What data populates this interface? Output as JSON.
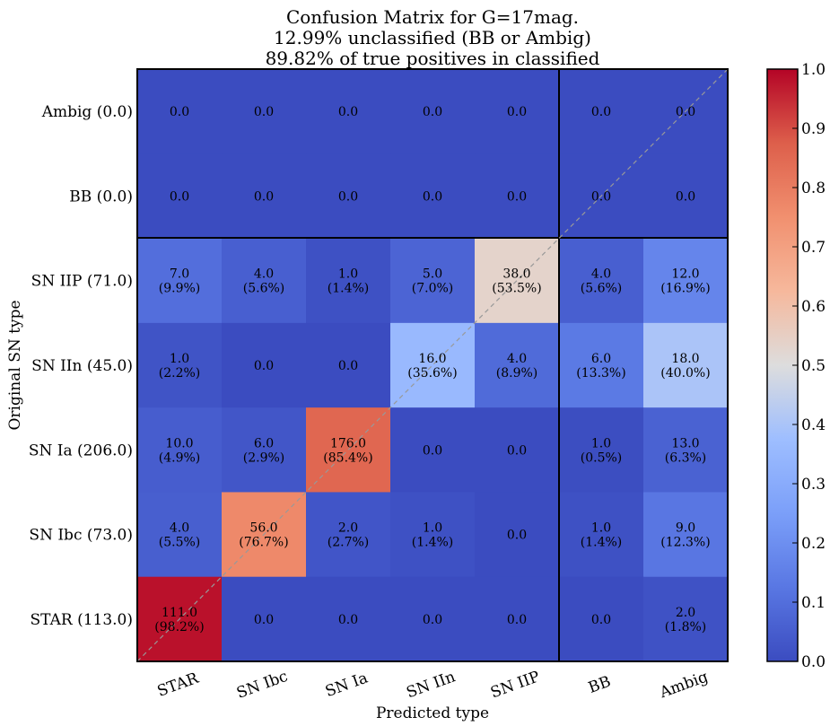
{
  "chart_data": {
    "type": "heatmap",
    "title": [
      "Confusion Matrix for G=17mag.",
      "12.99% unclassified (BB or Ambig)",
      "89.82% of true positives in classified"
    ],
    "x_label": "Predicted type",
    "y_label": "Original SN type",
    "columns": [
      "STAR",
      "SN Ibc",
      "SN Ia",
      "SN IIn",
      "SN IIP",
      "BB",
      "Ambig"
    ],
    "rows": [
      "Ambig (0.0)",
      "BB (0.0)",
      "SN IIP (71.0)",
      "SN IIn (45.0)",
      "SN Ia (206.0)",
      "SN Ibc (73.0)",
      "STAR (113.0)"
    ],
    "values": [
      [
        0,
        0,
        0,
        0,
        0,
        0,
        0
      ],
      [
        0,
        0,
        0,
        0,
        0,
        0,
        0
      ],
      [
        7,
        4,
        1,
        5,
        38,
        4,
        12
      ],
      [
        1,
        0,
        0,
        16,
        4,
        6,
        18
      ],
      [
        10,
        6,
        176,
        0,
        0,
        1,
        13
      ],
      [
        4,
        56,
        2,
        1,
        0,
        1,
        9
      ],
      [
        111,
        0,
        0,
        0,
        0,
        0,
        2
      ]
    ],
    "value_labels": [
      [
        "0.0",
        "0.0",
        "0.0",
        "0.0",
        "0.0",
        "0.0",
        "0.0"
      ],
      [
        "0.0",
        "0.0",
        "0.0",
        "0.0",
        "0.0",
        "0.0",
        "0.0"
      ],
      [
        "7.0",
        "4.0",
        "1.0",
        "5.0",
        "38.0",
        "4.0",
        "12.0"
      ],
      [
        "1.0",
        "0.0",
        "0.0",
        "16.0",
        "4.0",
        "6.0",
        "18.0"
      ],
      [
        "10.0",
        "6.0",
        "176.0",
        "0.0",
        "0.0",
        "1.0",
        "13.0"
      ],
      [
        "4.0",
        "56.0",
        "2.0",
        "1.0",
        "0.0",
        "1.0",
        "9.0"
      ],
      [
        "111.0",
        "0.0",
        "0.0",
        "0.0",
        "0.0",
        "0.0",
        "2.0"
      ]
    ],
    "percent": [
      [
        null,
        null,
        null,
        null,
        null,
        null,
        null
      ],
      [
        null,
        null,
        null,
        null,
        null,
        null,
        null
      ],
      [
        9.9,
        5.6,
        1.4,
        7.0,
        53.5,
        5.6,
        16.9
      ],
      [
        2.2,
        null,
        null,
        35.6,
        8.9,
        13.3,
        40.0
      ],
      [
        4.9,
        2.9,
        85.4,
        null,
        null,
        0.5,
        6.3
      ],
      [
        5.5,
        76.7,
        2.7,
        1.4,
        null,
        1.4,
        12.3
      ],
      [
        98.2,
        null,
        null,
        null,
        null,
        null,
        1.8
      ]
    ],
    "percent_labels": [
      [
        null,
        null,
        null,
        null,
        null,
        null,
        null
      ],
      [
        null,
        null,
        null,
        null,
        null,
        null,
        null
      ],
      [
        "(9.9%)",
        "(5.6%)",
        "(1.4%)",
        "(7.0%)",
        "(53.5%)",
        "(5.6%)",
        "(16.9%)"
      ],
      [
        "(2.2%)",
        null,
        null,
        "(35.6%)",
        "(8.9%)",
        "(13.3%)",
        "(40.0%)"
      ],
      [
        "(4.9%)",
        "(2.9%)",
        "(85.4%)",
        null,
        null,
        "(0.5%)",
        "(6.3%)"
      ],
      [
        "(5.5%)",
        "(76.7%)",
        "(2.7%)",
        "(1.4%)",
        null,
        "(1.4%)",
        "(12.3%)"
      ],
      [
        "(98.2%)",
        null,
        null,
        null,
        null,
        null,
        "(1.8%)"
      ]
    ],
    "clim": [
      0,
      1
    ],
    "cticks": [
      {
        "value": 0,
        "label": "0.0"
      },
      {
        "value": 0.1,
        "label": "0.1"
      },
      {
        "value": 0.2,
        "label": "0.2"
      },
      {
        "value": 0.3,
        "label": "0.3"
      },
      {
        "value": 0.4,
        "label": "0.4"
      },
      {
        "value": 0.5,
        "label": "0.5"
      },
      {
        "value": 0.6,
        "label": "0.6"
      },
      {
        "value": 0.7,
        "label": "0.7"
      },
      {
        "value": 0.8,
        "label": "0.8"
      },
      {
        "value": 0.9,
        "label": "0.9"
      },
      {
        "value": 1,
        "label": "1.0"
      }
    ],
    "colormap": [
      "#3b4cc0",
      "#5977e3",
      "#7b9ff9",
      "#9ebeff",
      "#dddddd",
      "#f6b89c",
      "#f1906f",
      "#dd5f4b",
      "#b40426"
    ]
  }
}
